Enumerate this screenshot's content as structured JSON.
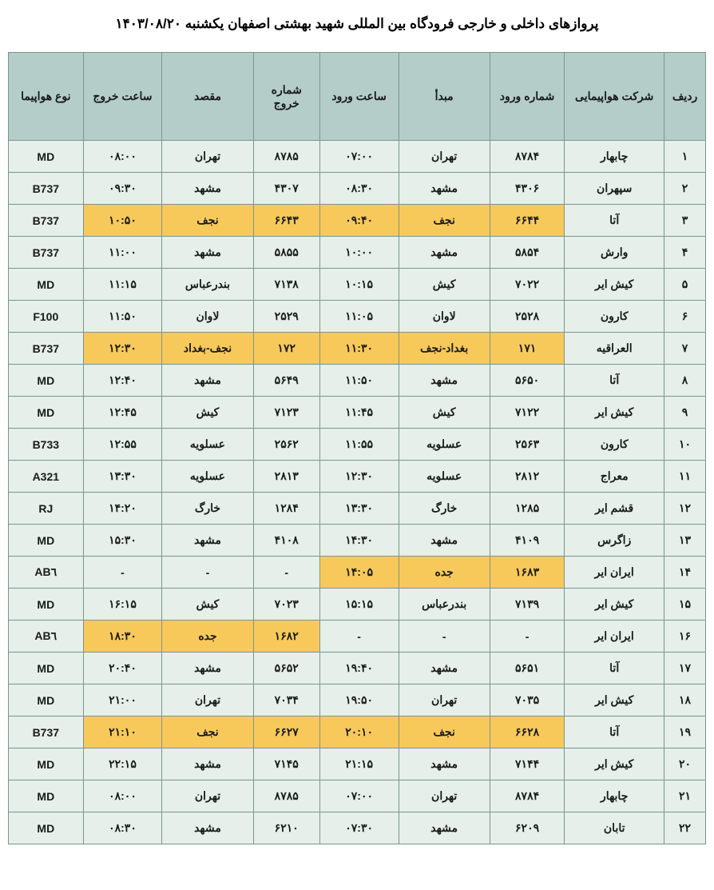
{
  "title": "پروازهای داخلی و خارجی فرودگاه بین المللی شهید بهشتی اصفهان یکشنبه ۱۴۰۳/۰۸/۲۰",
  "colors": {
    "header_bg": "#b4cdc8",
    "row_bg": "#e6efe9",
    "highlight_bg": "#f7c95a",
    "border": "#7a9490",
    "text": "#1a1a1a"
  },
  "columns": [
    "ردیف",
    "شرکت هواپیمایی",
    "شماره ورود",
    "مبدأ",
    "ساعت ورود",
    "شماره خروج",
    "مقصد",
    "ساعت خروج",
    "نوع هواپیما"
  ],
  "rows": [
    {
      "idx": "۱",
      "airline": "چابهار",
      "arr_no": "۸۷۸۴",
      "origin": "تهران",
      "arr_time": "۰۷:۰۰",
      "dep_no": "۸۷۸۵",
      "dest": "تهران",
      "dep_time": "۰۸:۰۰",
      "type": "MD",
      "hl": []
    },
    {
      "idx": "۲",
      "airline": "سپهران",
      "arr_no": "۴۳۰۶",
      "origin": "مشهد",
      "arr_time": "۰۸:۳۰",
      "dep_no": "۴۳۰۷",
      "dest": "مشهد",
      "dep_time": "۰۹:۳۰",
      "type": "B737",
      "hl": []
    },
    {
      "idx": "۳",
      "airline": "آتا",
      "arr_no": "۶۶۴۴",
      "origin": "نجف",
      "arr_time": "۰۹:۴۰",
      "dep_no": "۶۶۴۳",
      "dest": "نجف",
      "dep_time": "۱۰:۵۰",
      "type": "B737",
      "hl": [
        "arr_no",
        "origin",
        "arr_time",
        "dep_no",
        "dest",
        "dep_time"
      ]
    },
    {
      "idx": "۴",
      "airline": "وارش",
      "arr_no": "۵۸۵۴",
      "origin": "مشهد",
      "arr_time": "۱۰:۰۰",
      "dep_no": "۵۸۵۵",
      "dest": "مشهد",
      "dep_time": "۱۱:۰۰",
      "type": "B737",
      "hl": []
    },
    {
      "idx": "۵",
      "airline": "کیش ایر",
      "arr_no": "۷۰۲۲",
      "origin": "کیش",
      "arr_time": "۱۰:۱۵",
      "dep_no": "۷۱۳۸",
      "dest": "بندرعباس",
      "dep_time": "۱۱:۱۵",
      "type": "MD",
      "hl": []
    },
    {
      "idx": "۶",
      "airline": "کارون",
      "arr_no": "۲۵۲۸",
      "origin": "لاوان",
      "arr_time": "۱۱:۰۵",
      "dep_no": "۲۵۲۹",
      "dest": "لاوان",
      "dep_time": "۱۱:۵۰",
      "type": "F100",
      "hl": []
    },
    {
      "idx": "۷",
      "airline": "العراقیه",
      "arr_no": "۱۷۱",
      "origin": "بغداد-نجف",
      "arr_time": "۱۱:۳۰",
      "dep_no": "۱۷۲",
      "dest": "نجف-بغداد",
      "dep_time": "۱۲:۳۰",
      "type": "B737",
      "hl": [
        "arr_no",
        "origin",
        "arr_time",
        "dep_no",
        "dest",
        "dep_time"
      ]
    },
    {
      "idx": "۸",
      "airline": "آتا",
      "arr_no": "۵۶۵۰",
      "origin": "مشهد",
      "arr_time": "۱۱:۵۰",
      "dep_no": "۵۶۴۹",
      "dest": "مشهد",
      "dep_time": "۱۲:۴۰",
      "type": "MD",
      "hl": []
    },
    {
      "idx": "۹",
      "airline": "کیش ایر",
      "arr_no": "۷۱۲۲",
      "origin": "کیش",
      "arr_time": "۱۱:۴۵",
      "dep_no": "۷۱۲۳",
      "dest": "کیش",
      "dep_time": "۱۲:۴۵",
      "type": "MD",
      "hl": []
    },
    {
      "idx": "۱۰",
      "airline": "کارون",
      "arr_no": "۲۵۶۳",
      "origin": "عسلویه",
      "arr_time": "۱۱:۵۵",
      "dep_no": "۲۵۶۲",
      "dest": "عسلویه",
      "dep_time": "۱۲:۵۵",
      "type": "B733",
      "hl": []
    },
    {
      "idx": "۱۱",
      "airline": "معراج",
      "arr_no": "۲۸۱۲",
      "origin": "عسلویه",
      "arr_time": "۱۲:۳۰",
      "dep_no": "۲۸۱۳",
      "dest": "عسلویه",
      "dep_time": "۱۳:۳۰",
      "type": "A321",
      "hl": []
    },
    {
      "idx": "۱۲",
      "airline": "قشم ایر",
      "arr_no": "۱۲۸۵",
      "origin": "خارگ",
      "arr_time": "۱۳:۳۰",
      "dep_no": "۱۲۸۴",
      "dest": "خارگ",
      "dep_time": "۱۴:۲۰",
      "type": "RJ",
      "hl": []
    },
    {
      "idx": "۱۳",
      "airline": "زاگرس",
      "arr_no": "۴۱۰۹",
      "origin": "مشهد",
      "arr_time": "۱۴:۳۰",
      "dep_no": "۴۱۰۸",
      "dest": "مشهد",
      "dep_time": "۱۵:۳۰",
      "type": "MD",
      "hl": []
    },
    {
      "idx": "۱۴",
      "airline": "ایران ایر",
      "arr_no": "۱۶۸۳",
      "origin": "جده",
      "arr_time": "۱۴:۰۵",
      "dep_no": "-",
      "dest": "-",
      "dep_time": "-",
      "type": "AB٦",
      "hl": [
        "arr_no",
        "origin",
        "arr_time"
      ]
    },
    {
      "idx": "۱۵",
      "airline": "کیش ایر",
      "arr_no": "۷۱۳۹",
      "origin": "بندرعباس",
      "arr_time": "۱۵:۱۵",
      "dep_no": "۷۰۲۳",
      "dest": "کیش",
      "dep_time": "۱۶:۱۵",
      "type": "MD",
      "hl": []
    },
    {
      "idx": "۱۶",
      "airline": "ایران ایر",
      "arr_no": "-",
      "origin": "-",
      "arr_time": "-",
      "dep_no": "۱۶۸۲",
      "dest": "جده",
      "dep_time": "۱۸:۳۰",
      "type": "AB٦",
      "hl": [
        "dep_no",
        "dest",
        "dep_time"
      ]
    },
    {
      "idx": "۱۷",
      "airline": "آتا",
      "arr_no": "۵۶۵۱",
      "origin": "مشهد",
      "arr_time": "۱۹:۴۰",
      "dep_no": "۵۶۵۲",
      "dest": "مشهد",
      "dep_time": "۲۰:۴۰",
      "type": "MD",
      "hl": []
    },
    {
      "idx": "۱۸",
      "airline": "کیش ایر",
      "arr_no": "۷۰۳۵",
      "origin": "تهران",
      "arr_time": "۱۹:۵۰",
      "dep_no": "۷۰۳۴",
      "dest": "تهران",
      "dep_time": "۲۱:۰۰",
      "type": "MD",
      "hl": []
    },
    {
      "idx": "۱۹",
      "airline": "آتا",
      "arr_no": "۶۶۲۸",
      "origin": "نجف",
      "arr_time": "۲۰:۱۰",
      "dep_no": "۶۶۲۷",
      "dest": "نجف",
      "dep_time": "۲۱:۱۰",
      "type": "B737",
      "hl": [
        "arr_no",
        "origin",
        "arr_time",
        "dep_no",
        "dest",
        "dep_time"
      ]
    },
    {
      "idx": "۲۰",
      "airline": "کیش ایر",
      "arr_no": "۷۱۴۴",
      "origin": "مشهد",
      "arr_time": "۲۱:۱۵",
      "dep_no": "۷۱۴۵",
      "dest": "مشهد",
      "dep_time": "۲۲:۱۵",
      "type": "MD",
      "hl": []
    },
    {
      "idx": "۲۱",
      "airline": "چابهار",
      "arr_no": "۸۷۸۴",
      "origin": "تهران",
      "arr_time": "۰۷:۰۰",
      "dep_no": "۸۷۸۵",
      "dest": "تهران",
      "dep_time": "۰۸:۰۰",
      "type": "MD",
      "hl": []
    },
    {
      "idx": "۲۲",
      "airline": "تابان",
      "arr_no": "۶۲۰۹",
      "origin": "مشهد",
      "arr_time": "۰۷:۳۰",
      "dep_no": "۶۲۱۰",
      "dest": "مشهد",
      "dep_time": "۰۸:۳۰",
      "type": "MD",
      "hl": []
    }
  ]
}
